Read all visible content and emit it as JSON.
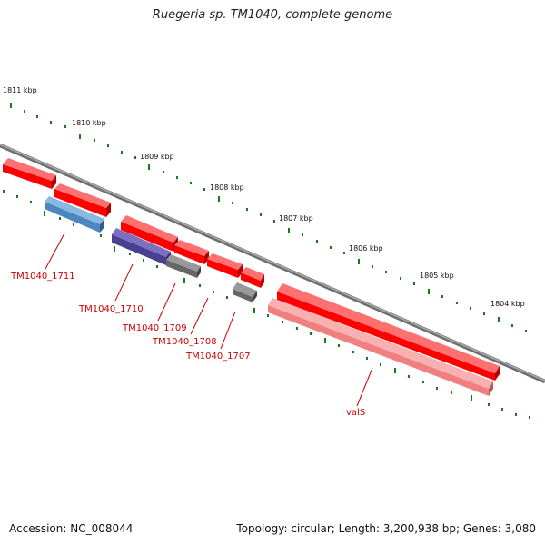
{
  "title": "Ruegeria sp. TM1040, complete genome",
  "footer": {
    "accession": "Accession: NC_008044",
    "stats": "Topology: circular; Length: 3,200,938 bp; Genes: 3,080"
  },
  "scale_labels": [
    "1811 kbp",
    "1810 kbp",
    "1809 kbp",
    "1808 kbp",
    "1807 kbp",
    "1806 kbp",
    "1805 kbp",
    "1804 kbp"
  ],
  "gene_labels": [
    "TM1040_1711",
    "TM1040_1710",
    "TM1040_1709",
    "TM1040_1708",
    "TM1040_1707",
    "valS"
  ],
  "colors": {
    "backbone": "#8a8a8a",
    "cds": "#ff0000",
    "highlight_blue": "#4a86c0",
    "highlight_purple": "#4a3f90",
    "highlight_gray": "#666666",
    "highlight_pink": "#f08080",
    "ticks": "#1a7a1a",
    "label": "#cc0000"
  }
}
